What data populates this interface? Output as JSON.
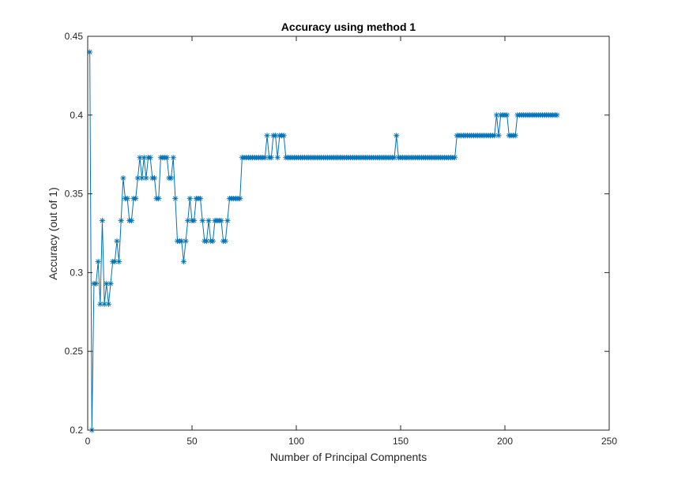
{
  "chart_data": {
    "type": "line",
    "title": "Accuracy using method 1",
    "xlabel": "Number of Principal Compnents",
    "ylabel": "Accuracy (out of 1)",
    "xlim": [
      0,
      250
    ],
    "ylim": [
      0.2,
      0.45
    ],
    "xticks": [
      0,
      50,
      100,
      150,
      200,
      250
    ],
    "yticks": [
      0.2,
      0.25,
      0.3,
      0.35,
      0.4,
      0.45
    ],
    "xtick_labels": [
      "0",
      "50",
      "100",
      "150",
      "200",
      "250"
    ],
    "ytick_labels": [
      "0.2",
      "0.25",
      "0.3",
      "0.35",
      "0.4",
      "0.45"
    ],
    "grid": false,
    "marker": "*",
    "line_color": "#0072bd",
    "series": [
      {
        "x_start": 1,
        "x_step": 1,
        "values": [
          0.44,
          0.2,
          0.293,
          0.293,
          0.307,
          0.28,
          0.333,
          0.28,
          0.293,
          0.28,
          0.293,
          0.307,
          0.307,
          0.32,
          0.307,
          0.333,
          0.36,
          0.347,
          0.347,
          0.333,
          0.333,
          0.347,
          0.347,
          0.36,
          0.373,
          0.36,
          0.373,
          0.36,
          0.373,
          0.373,
          0.36,
          0.36,
          0.347,
          0.347,
          0.373,
          0.373,
          0.373,
          0.373,
          0.36,
          0.36,
          0.373,
          0.347,
          0.32,
          0.32,
          0.32,
          0.307,
          0.32,
          0.333,
          0.347,
          0.333,
          0.333,
          0.347,
          0.347,
          0.347,
          0.333,
          0.32,
          0.32,
          0.333,
          0.32,
          0.32,
          0.333,
          0.333,
          0.333,
          0.333,
          0.32,
          0.32,
          0.333,
          0.347,
          0.347,
          0.347,
          0.347,
          0.347,
          0.347,
          0.373,
          0.373,
          0.373,
          0.373,
          0.373,
          0.373,
          0.373,
          0.373,
          0.373,
          0.373,
          0.373,
          0.373,
          0.387,
          0.373,
          0.373,
          0.387,
          0.387,
          0.373,
          0.387,
          0.387,
          0.387,
          0.373,
          0.373,
          0.373,
          0.373,
          0.373,
          0.373,
          0.373,
          0.373,
          0.373,
          0.373,
          0.373,
          0.373,
          0.373,
          0.373,
          0.373,
          0.373,
          0.373,
          0.373,
          0.373,
          0.373,
          0.373,
          0.373,
          0.373,
          0.373,
          0.373,
          0.373,
          0.373,
          0.373,
          0.373,
          0.373,
          0.373,
          0.373,
          0.373,
          0.373,
          0.373,
          0.373,
          0.373,
          0.373,
          0.373,
          0.373,
          0.373,
          0.373,
          0.373,
          0.373,
          0.373,
          0.373,
          0.373,
          0.373,
          0.373,
          0.373,
          0.373,
          0.373,
          0.373,
          0.387,
          0.373,
          0.373,
          0.373,
          0.373,
          0.373,
          0.373,
          0.373,
          0.373,
          0.373,
          0.373,
          0.373,
          0.373,
          0.373,
          0.373,
          0.373,
          0.373,
          0.373,
          0.373,
          0.373,
          0.373,
          0.373,
          0.373,
          0.373,
          0.373,
          0.373,
          0.373,
          0.373,
          0.373,
          0.387,
          0.387,
          0.387,
          0.387,
          0.387,
          0.387,
          0.387,
          0.387,
          0.387,
          0.387,
          0.387,
          0.387,
          0.387,
          0.387,
          0.387,
          0.387,
          0.387,
          0.387,
          0.387,
          0.4,
          0.387,
          0.4,
          0.4,
          0.4,
          0.4,
          0.387,
          0.387,
          0.387,
          0.387,
          0.4,
          0.4,
          0.4,
          0.4,
          0.4,
          0.4,
          0.4,
          0.4,
          0.4,
          0.4,
          0.4,
          0.4,
          0.4,
          0.4,
          0.4,
          0.4,
          0.4,
          0.4,
          0.4,
          0.4
        ]
      }
    ]
  }
}
